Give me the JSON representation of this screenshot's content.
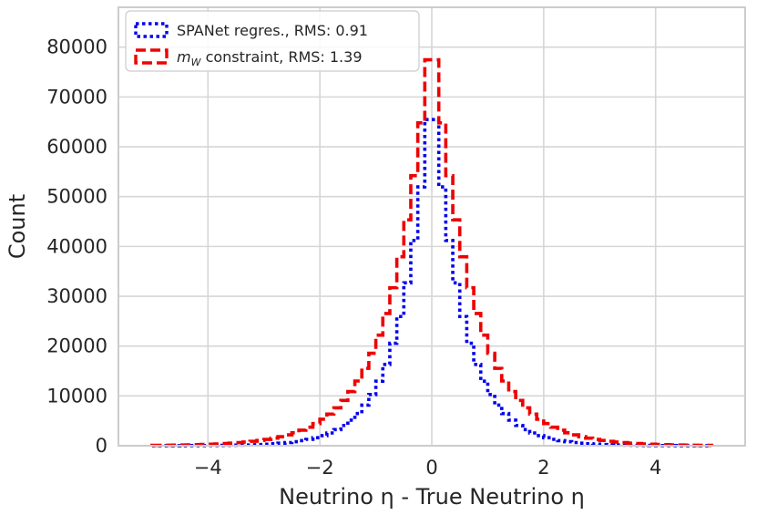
{
  "chart_data": {
    "type": "histogram",
    "xlabel": "Neutrino η - True Neutrino η",
    "ylabel": "Count",
    "xlim": [
      -5.6,
      5.6
    ],
    "ylim": [
      0,
      88000
    ],
    "xticks": [
      -4,
      -2,
      0,
      2,
      4
    ],
    "xtick_labels": [
      "−4",
      "−2",
      "0",
      "2",
      "4"
    ],
    "yticks": [
      0,
      10000,
      20000,
      30000,
      40000,
      50000,
      60000,
      70000,
      80000
    ],
    "ytick_labels": [
      "0",
      "10000",
      "20000",
      "30000",
      "40000",
      "50000",
      "60000",
      "70000",
      "80000"
    ],
    "grid": true,
    "legend_position": "upper-left",
    "bin_range": [
      -5,
      5
    ],
    "bin_count": 80,
    "series": [
      {
        "name": "SPANet regres., RMS: 0.91",
        "legend_label": {
          "pre": "SPANet regres., RMS: 0.91"
        },
        "color": "#0000ee",
        "style": "dotted",
        "peak_value": 73500,
        "shape": "laplace",
        "scale": 0.54,
        "bin_values": []
      },
      {
        "name": "m_W constraint, RMS: 1.39",
        "legend_label": {
          "symbol": "m",
          "subscript": "W",
          "post": " constraint, RMS: 1.39"
        },
        "color": "#ee0000",
        "style": "dashed",
        "peak_value": 84700,
        "shape": "laplace",
        "scale": 0.7,
        "bin_values": []
      }
    ]
  }
}
